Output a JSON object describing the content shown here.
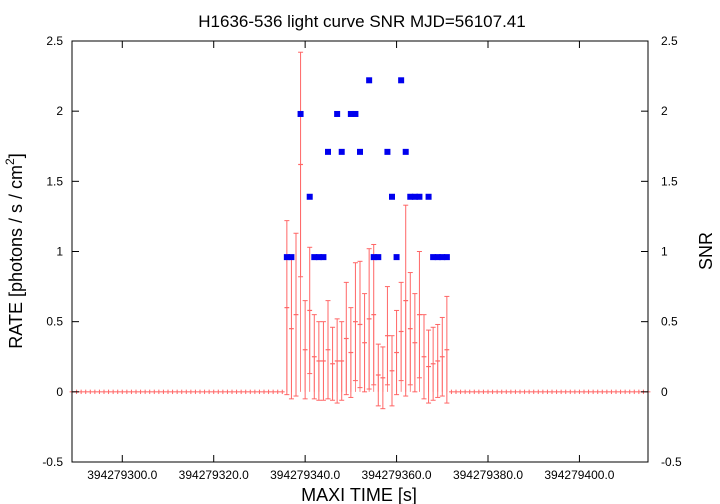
{
  "chart_data": {
    "type": "scatter",
    "title": "H1636-536 light curve  SNR MJD=56107.41",
    "xlabel": "MAXI TIME [s]",
    "ylabel_left": "RATE [photons / s / cm",
    "ylabel_left_sup": "2",
    "ylabel_left_close": "]",
    "ylabel_right": "SNR",
    "xlim": [
      394279289,
      394279415
    ],
    "ylim": [
      -0.5,
      2.5
    ],
    "x_ticks": [
      394279300,
      394279320,
      394279340,
      394279360,
      394279380,
      394279400
    ],
    "x_tick_labels": [
      "394279300.0",
      "394279320.0",
      "394279340.0",
      "394279360.0",
      "394279380.0",
      "394279400.0"
    ],
    "y_ticks": [
      -0.5,
      0,
      0.5,
      1,
      1.5,
      2,
      2.5
    ],
    "y_tick_labels": [
      "-0.5",
      "0",
      "0.5",
      "1",
      "1.5",
      "2",
      "2.5"
    ],
    "y2_tick_labels": [
      "-0.5",
      "0",
      "0.5",
      "1",
      "1.5",
      "2",
      "2.5"
    ],
    "grid": false,
    "colors": {
      "rate": "#ff6666",
      "snr": "#0000ee",
      "axis": "#000000"
    },
    "series": [
      {
        "key": "rate",
        "kind": "errorbar",
        "x": [
          394279336.0,
          394279337.0,
          394279338.0,
          394279339.0,
          394279340.0,
          394279341.0,
          394279342.0,
          394279343.0,
          394279344.0,
          394279345.0,
          394279346.0,
          394279347.0,
          394279348.0,
          394279349.0,
          394279350.0,
          394279351.0,
          394279352.0,
          394279353.0,
          394279354.0,
          394279355.0,
          394279356.0,
          394279357.0,
          394279358.0,
          394279359.0,
          394279360.0,
          394279361.0,
          394279362.0,
          394279363.0,
          394279364.0,
          394279365.0,
          394279366.0,
          394279367.0,
          394279368.0,
          394279369.0,
          394279370.0,
          394279371.0
        ],
        "y": [
          0.6,
          0.45,
          0.55,
          1.62,
          0.3,
          0.58,
          0.25,
          0.22,
          0.22,
          0.3,
          0.2,
          0.22,
          0.22,
          0.38,
          0.28,
          0.5,
          0.48,
          0.35,
          0.52,
          0.55,
          0.12,
          0.1,
          0.4,
          0.15,
          0.28,
          0.43,
          0.65,
          0.45,
          0.35,
          0.55,
          0.25,
          0.18,
          0.2,
          0.22,
          0.25,
          0.3
        ],
        "yerr": [
          0.62,
          0.5,
          0.58,
          0.8,
          0.35,
          0.45,
          0.3,
          0.28,
          0.28,
          0.35,
          0.26,
          0.3,
          0.28,
          0.4,
          0.32,
          0.42,
          0.45,
          0.35,
          0.5,
          0.5,
          0.22,
          0.22,
          0.35,
          0.25,
          0.3,
          0.35,
          0.68,
          0.4,
          0.35,
          0.45,
          0.3,
          0.26,
          0.26,
          0.26,
          0.28,
          0.38
        ]
      },
      {
        "key": "snr",
        "kind": "points",
        "x": [
          394279336.0,
          394279337.0,
          394279339.0,
          394279341.0,
          394279342.0,
          394279343.0,
          394279344.0,
          394279345.0,
          394279347.0,
          394279348.0,
          394279350.0,
          394279351.0,
          394279352.0,
          394279354.0,
          394279355.0,
          394279356.0,
          394279358.0,
          394279359.0,
          394279360.0,
          394279361.0,
          394279362.0,
          394279363.0,
          394279364.0,
          394279365.0,
          394279367.0,
          394279368.0,
          394279369.0,
          394279370.0,
          394279371.0
        ],
        "y": [
          0.96,
          0.96,
          1.98,
          1.39,
          0.96,
          0.96,
          0.96,
          1.71,
          1.98,
          1.71,
          1.98,
          1.98,
          1.71,
          2.22,
          0.96,
          0.96,
          1.71,
          1.39,
          0.96,
          2.22,
          1.71,
          1.39,
          1.39,
          1.39,
          1.39,
          0.96,
          0.96,
          0.96,
          0.96
        ]
      }
    ]
  }
}
